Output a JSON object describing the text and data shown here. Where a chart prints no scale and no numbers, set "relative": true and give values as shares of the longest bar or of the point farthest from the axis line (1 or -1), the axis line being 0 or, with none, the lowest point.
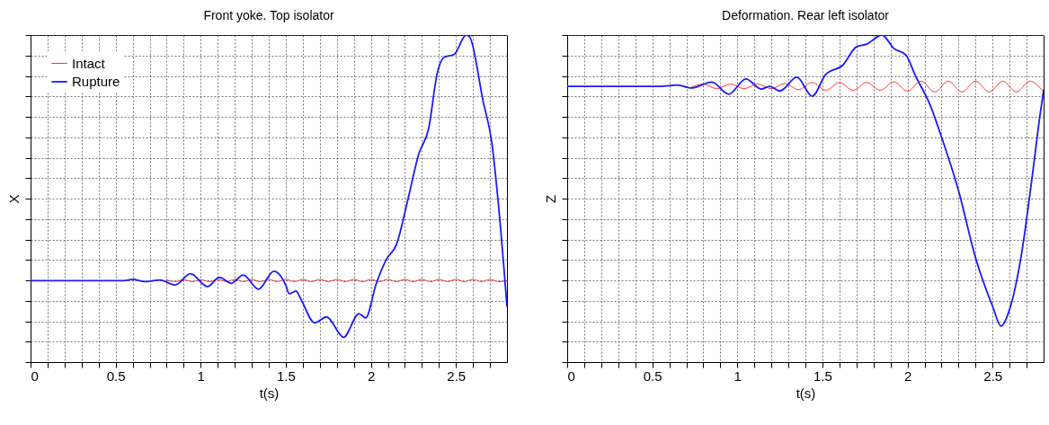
{
  "chart_data": [
    {
      "type": "line",
      "title": "Front yoke. Top isolator",
      "xlabel": "t(s)",
      "ylabel": "X",
      "relative": true,
      "grid": true,
      "legend": "top left",
      "tick_labels": "x",
      "xlim": [
        0,
        2.8
      ],
      "xticks": [
        0,
        {
          "value": 0.1,
          "label": null
        },
        {
          "value": 0.2,
          "label": null
        },
        {
          "value": 0.3,
          "label": null
        },
        {
          "value": 0.4,
          "label": null
        },
        0.5,
        {
          "value": 0.6,
          "label": null
        },
        {
          "value": 0.7,
          "label": null
        },
        {
          "value": 0.8,
          "label": null
        },
        {
          "value": 0.9,
          "label": null
        },
        1,
        {
          "value": 1.1,
          "label": null
        },
        {
          "value": 1.2,
          "label": null
        },
        {
          "value": 1.3,
          "label": null
        },
        {
          "value": 1.4,
          "label": null
        },
        1.5,
        {
          "value": 1.6,
          "label": null
        },
        {
          "value": 1.7,
          "label": null
        },
        {
          "value": 1.8,
          "label": null
        },
        {
          "value": 1.9,
          "label": null
        },
        2,
        {
          "value": 2.1,
          "label": null
        },
        {
          "value": 2.2,
          "label": null
        },
        {
          "value": 2.3,
          "label": null
        },
        {
          "value": 2.4,
          "label": null
        },
        2.5,
        {
          "value": 2.6,
          "label": null
        },
        {
          "value": 2.7,
          "label": null
        }
      ],
      "series": [
        {
          "name": "Intact",
          "color": "#ff3333",
          "x": [
            0.8,
            0.85,
            0.9,
            0.95,
            1,
            1.05,
            1.1,
            1.15,
            1.2,
            1.25,
            1.3,
            1.35,
            1.4,
            1.45,
            1.5,
            1.55,
            1.6,
            1.65,
            1.7,
            1.75,
            1.8,
            1.85,
            1.9,
            1.95,
            2,
            2.05,
            2.1,
            2.15,
            2.2,
            2.25,
            2.3,
            2.35,
            2.4,
            2.45,
            2.5,
            2.55,
            2.6,
            2.65,
            2.7,
            2.75,
            2.8
          ],
          "values": [
            0.252,
            0.246,
            0.252,
            0.246,
            0.252,
            0.246,
            0.253,
            0.246,
            0.253,
            0.246,
            0.253,
            0.246,
            0.253,
            0.246,
            0.253,
            0.246,
            0.253,
            0.246,
            0.253,
            0.246,
            0.253,
            0.246,
            0.253,
            0.246,
            0.253,
            0.246,
            0.253,
            0.246,
            0.253,
            0.246,
            0.253,
            0.246,
            0.253,
            0.246,
            0.253,
            0.246,
            0.253,
            0.246,
            0.253,
            0.246,
            0.249
          ]
        },
        {
          "name": "Rupture",
          "color": "#1a1aff",
          "x": [
            0,
            0.55,
            0.6,
            0.67,
            0.76,
            0.85,
            0.94,
            1.04,
            1.11,
            1.18,
            1.25,
            1.34,
            1.43,
            1.5,
            1.52,
            1.56,
            1.59,
            1.67,
            1.74,
            1.84,
            1.93,
            1.97,
            2.03,
            2.09,
            2.15,
            2.22,
            2.28,
            2.34,
            2.39,
            2.43,
            2.49,
            2.56,
            2.58,
            2.66,
            2.71,
            2.75,
            2.8
          ],
          "values": [
            0.249,
            0.249,
            0.253,
            0.246,
            0.251,
            0.236,
            0.27,
            0.231,
            0.259,
            0.241,
            0.266,
            0.223,
            0.278,
            0.235,
            0.209,
            0.217,
            0.191,
            0.12,
            0.138,
            0.076,
            0.148,
            0.135,
            0.237,
            0.313,
            0.359,
            0.502,
            0.634,
            0.715,
            0.883,
            0.932,
            0.941,
            1,
            0.995,
            0.797,
            0.674,
            0.481,
            0.171
          ]
        }
      ]
    },
    {
      "type": "line",
      "title": "Deformation. Rear left isolator",
      "xlabel": "t(s)",
      "ylabel": "Z",
      "relative": true,
      "grid": true,
      "legend": "top left",
      "tick_labels": "x",
      "xlim": [
        0,
        2.8
      ],
      "xticks": [
        0,
        {
          "value": 0.1,
          "label": null
        },
        {
          "value": 0.2,
          "label": null
        },
        {
          "value": 0.3,
          "label": null
        },
        {
          "value": 0.4,
          "label": null
        },
        0.5,
        {
          "value": 0.6,
          "label": null
        },
        {
          "value": 0.7,
          "label": null
        },
        {
          "value": 0.8,
          "label": null
        },
        {
          "value": 0.9,
          "label": null
        },
        1,
        {
          "value": 1.1,
          "label": null
        },
        {
          "value": 1.2,
          "label": null
        },
        {
          "value": 1.3,
          "label": null
        },
        {
          "value": 1.4,
          "label": null
        },
        1.5,
        {
          "value": 1.6,
          "label": null
        },
        {
          "value": 1.7,
          "label": null
        },
        {
          "value": 1.8,
          "label": null
        },
        {
          "value": 1.9,
          "label": null
        },
        2,
        {
          "value": 2.1,
          "label": null
        },
        {
          "value": 2.2,
          "label": null
        },
        {
          "value": 2.3,
          "label": null
        },
        {
          "value": 2.4,
          "label": null
        },
        2.5,
        {
          "value": 2.6,
          "label": null
        },
        {
          "value": 2.7,
          "label": null
        }
      ],
      "series": [
        {
          "name": "Intact",
          "color": "#ff3333",
          "x": [
            0.72,
            0.8,
            0.88,
            0.96,
            1.04,
            1.12,
            1.2,
            1.28,
            1.36,
            1.44,
            1.52,
            1.6,
            1.68,
            1.76,
            1.84,
            1.92,
            2,
            2.08,
            2.16,
            2.24,
            2.32,
            2.4,
            2.48,
            2.56,
            2.64,
            2.72,
            2.8
          ],
          "values": [
            0.838,
            0.85,
            0.836,
            0.85,
            0.836,
            0.85,
            0.836,
            0.852,
            0.833,
            0.855,
            0.831,
            0.855,
            0.831,
            0.855,
            0.831,
            0.857,
            0.828,
            0.859,
            0.826,
            0.859,
            0.826,
            0.859,
            0.826,
            0.859,
            0.826,
            0.859,
            0.826
          ]
        },
        {
          "name": "Rupture",
          "color": "#1a1aff",
          "x": [
            0,
            0.55,
            0.65,
            0.73,
            0.85,
            0.95,
            1.05,
            1.14,
            1.19,
            1.25,
            1.35,
            1.44,
            1.52,
            1.62,
            1.7,
            1.76,
            1.85,
            1.92,
            1.99,
            2.05,
            2.13,
            2.2,
            2.3,
            2.4,
            2.5,
            2.55,
            2.6,
            2.67,
            2.73,
            2.78,
            2.8
          ],
          "values": [
            0.843,
            0.843,
            0.847,
            0.838,
            0.856,
            0.819,
            0.866,
            0.835,
            0.843,
            0.829,
            0.871,
            0.813,
            0.88,
            0.908,
            0.964,
            0.972,
            1,
            0.959,
            0.939,
            0.872,
            0.79,
            0.688,
            0.524,
            0.319,
            0.171,
            0.11,
            0.161,
            0.33,
            0.555,
            0.759,
            0.831
          ]
        }
      ]
    }
  ]
}
